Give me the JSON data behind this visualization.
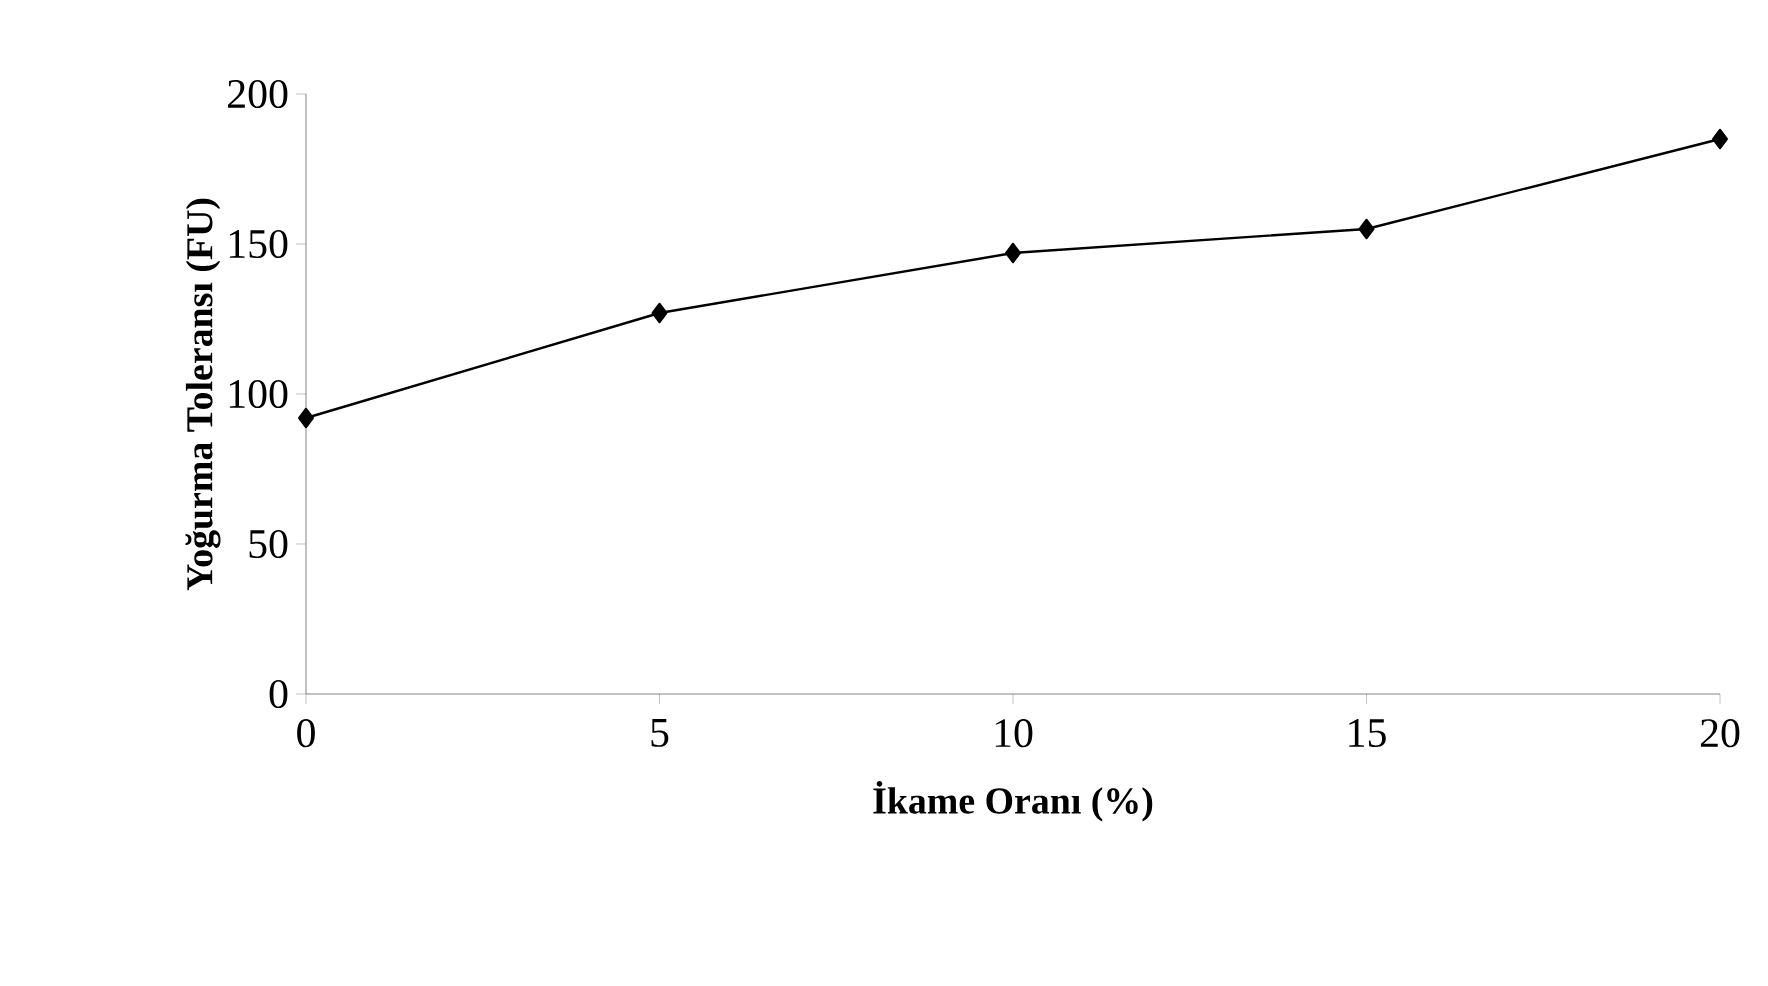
{
  "chart_data": {
    "type": "line",
    "xlabel": "İkame Oranı (%)",
    "ylabel": "Yoğurma Toleransı (FU)",
    "x": [
      0,
      5,
      10,
      15,
      20
    ],
    "values": [
      92,
      127,
      147,
      155,
      185
    ],
    "color": "#000000",
    "marker": "diamond",
    "line_style": "solid",
    "xlim": [
      0,
      20
    ],
    "xticks": [
      0,
      5,
      10,
      15,
      20
    ],
    "ylim": [
      0,
      200
    ],
    "yticks": [
      0,
      50,
      100,
      150,
      200
    ]
  }
}
